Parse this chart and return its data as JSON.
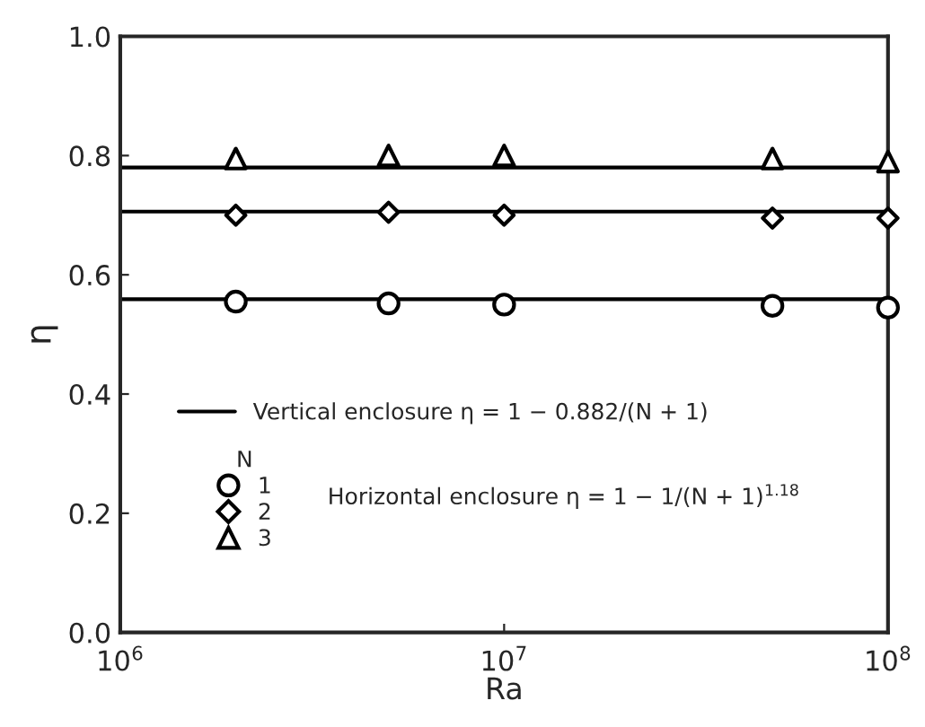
{
  "chart_data": {
    "type": "scatter",
    "xlabel": "Ra",
    "ylabel": "η",
    "log": "x",
    "xlim": [
      1000000,
      100000000
    ],
    "xticks": [
      {
        "value": 1000000,
        "label": "10$^{6}$"
      },
      {
        "value": 10000000,
        "label": "10$^{7}$"
      },
      {
        "value": 100000000,
        "label": "10$^{8}$"
      }
    ],
    "ylim": [
      0,
      1
    ],
    "yticks": [
      {
        "value": 0,
        "label": "0.0"
      },
      {
        "value": 0.2,
        "label": "0.2"
      },
      {
        "value": 0.4,
        "label": "0.4"
      },
      {
        "value": 0.6,
        "label": "0.6"
      },
      {
        "value": 0.8,
        "label": "0.8"
      },
      {
        "value": 1,
        "label": "1.0"
      }
    ],
    "grid": false,
    "legend": "left",
    "legend_title": "N",
    "annotations": [
      "Horizontal enclosure η = 1 − 1/(N + 1)$^{1.18}$"
    ],
    "series": [
      {
        "type": "line",
        "name": "Vertical enclosure η = 1 − 0.882/(N + 1)",
        "color": "#000000",
        "x": [
          1000000,
          100000000
        ],
        "values": [
          0.559,
          0.559
        ],
        "marker": "none",
        "line_style": "solid"
      },
      {
        "type": "line",
        "color": "#000000",
        "x": [
          1000000,
          100000000
        ],
        "values": [
          0.706,
          0.706
        ],
        "marker": "none",
        "line_style": "solid"
      },
      {
        "type": "line",
        "color": "#000000",
        "x": [
          1000000,
          100000000
        ],
        "values": [
          0.78,
          0.78
        ],
        "marker": "none",
        "line_style": "solid"
      },
      {
        "name": "1",
        "color": "#000000",
        "marker": "circle",
        "x": [
          2000000,
          5000000,
          10000000,
          50000000,
          100000000
        ],
        "values": [
          0.555,
          0.552,
          0.55,
          0.548,
          0.545
        ]
      },
      {
        "name": "2",
        "color": "#000000",
        "marker": "diamond",
        "x": [
          2000000,
          5000000,
          10000000,
          50000000,
          100000000
        ],
        "values": [
          0.7,
          0.705,
          0.7,
          0.695,
          0.695
        ]
      },
      {
        "name": "3",
        "color": "#000000",
        "marker": "triangle",
        "x": [
          2000000,
          5000000,
          10000000,
          50000000,
          100000000
        ],
        "values": [
          0.795,
          0.8,
          0.8,
          0.795,
          0.79
        ]
      }
    ]
  }
}
